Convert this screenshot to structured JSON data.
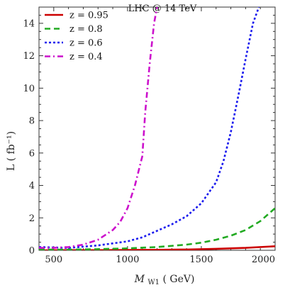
{
  "chart_data": {
    "type": "line",
    "title": "LHC @ 14 TeV",
    "xlabel": "M W1( GeV)",
    "xlabel_main": "M",
    "xlabel_sub": "W1",
    "xlabel_unit": "( GeV)",
    "ylabel": "L ( fb⁻¹)",
    "xlim": [
      400,
      2000
    ],
    "ylim": [
      0,
      15
    ],
    "xticks": [
      500,
      1000,
      1500,
      2000
    ],
    "xtick_labels": [
      "500",
      "1000",
      "1500",
      "2000"
    ],
    "yticks": [
      0,
      2,
      4,
      6,
      8,
      10,
      12,
      14
    ],
    "ytick_labels": [
      "0",
      "2",
      "4",
      "6",
      "8",
      "10",
      "12",
      "14"
    ],
    "legend_position": "top-left",
    "series": [
      {
        "name": "z 0.95",
        "label_text": "z = 0.95",
        "color": "#cc0000",
        "dash": "solid",
        "x": [
          400,
          600,
          800,
          1000,
          1200,
          1400,
          1600,
          1800,
          2000
        ],
        "y": [
          0.0,
          0.01,
          0.01,
          0.02,
          0.03,
          0.05,
          0.09,
          0.15,
          0.25
        ]
      },
      {
        "name": "z 0.8",
        "label_text": "z = 0.8",
        "color": "#22aa22",
        "dash": "dashed",
        "x": [
          400,
          600,
          800,
          1000,
          1200,
          1400,
          1500,
          1600,
          1700,
          1800,
          1900,
          2000
        ],
        "y": [
          0.05,
          0.04,
          0.07,
          0.12,
          0.2,
          0.35,
          0.47,
          0.65,
          0.9,
          1.25,
          1.8,
          2.6
        ]
      },
      {
        "name": "z 0.6",
        "label_text": "z = 0.6",
        "color": "#1a1aee",
        "dash": "dotted",
        "x": [
          400,
          600,
          800,
          1000,
          1100,
          1200,
          1300,
          1400,
          1500,
          1600,
          1650,
          1700,
          1750,
          1800,
          1850,
          1890
        ],
        "y": [
          0.2,
          0.15,
          0.3,
          0.55,
          0.8,
          1.2,
          1.6,
          2.1,
          2.9,
          4.2,
          5.5,
          7.3,
          9.5,
          11.8,
          14.0,
          15.0
        ]
      },
      {
        "name": "z 0.4",
        "label_text": "z = 0.4",
        "color": "#cc11cc",
        "dash": "dashdot",
        "x": [
          400,
          500,
          600,
          700,
          800,
          900,
          950,
          1000,
          1050,
          1100,
          1120,
          1150,
          1180,
          1200
        ],
        "y": [
          0.15,
          0.15,
          0.2,
          0.35,
          0.65,
          1.25,
          1.75,
          2.6,
          4.0,
          5.8,
          8.5,
          11.5,
          14.0,
          15.0
        ]
      }
    ]
  }
}
